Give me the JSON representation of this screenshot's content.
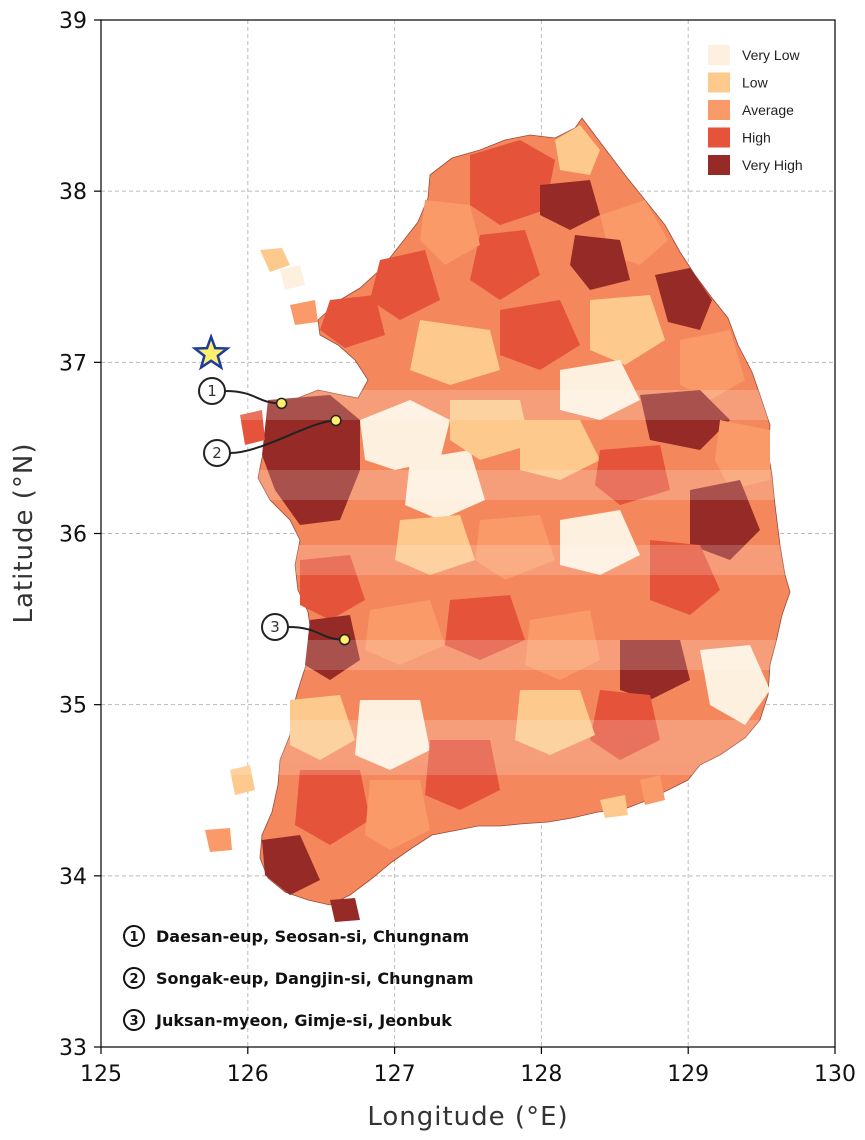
{
  "axes": {
    "xlabel": "Longitude (°E)",
    "ylabel": "Latitude (°N)",
    "xlim": [
      125,
      130
    ],
    "ylim": [
      33,
      39
    ],
    "xticks": [
      "125",
      "126",
      "127",
      "128",
      "129",
      "130"
    ],
    "yticks": [
      "33",
      "34",
      "35",
      "36",
      "37",
      "38",
      "39"
    ],
    "grid": true
  },
  "legend": {
    "placement": "top-right",
    "items": [
      {
        "label": "Very Low",
        "color": "#fdf0df"
      },
      {
        "label": "Low",
        "color": "#fdc98c"
      },
      {
        "label": "Average",
        "color": "#f99a68"
      },
      {
        "label": "High",
        "color": "#e4533a"
      },
      {
        "label": "Very High",
        "color": "#962a26"
      }
    ]
  },
  "markers": {
    "star": {
      "lon": 125.75,
      "lat": 37.05,
      "icon": "star-icon",
      "color": "#ffef6a",
      "stroke": "#1d3c9c"
    },
    "sites": [
      {
        "number": "1",
        "lon": 126.23,
        "lat": 36.76,
        "label": "Daesan-eup, Seosan-si, Chungnam"
      },
      {
        "number": "2",
        "lon": 126.6,
        "lat": 36.66,
        "label": "Songak-eup, Dangjin-si, Chungnam"
      },
      {
        "number": "3",
        "lon": 126.66,
        "lat": 35.38,
        "label": "Juksan-myeon, Gimje-si, Jeonbuk"
      }
    ]
  }
}
